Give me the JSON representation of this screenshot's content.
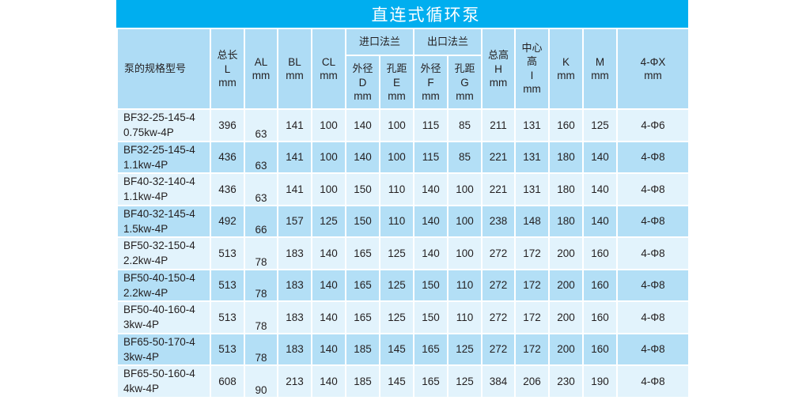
{
  "title": "直连式循环泵",
  "headers": {
    "model": "泵的规格型号",
    "L": [
      "总长",
      "L",
      "mm"
    ],
    "AL": [
      "AL",
      "mm"
    ],
    "BL": [
      "BL",
      "mm"
    ],
    "CL": [
      "CL",
      "mm"
    ],
    "inlet": "进口法兰",
    "outlet": "出口法兰",
    "D": [
      "外径",
      "D",
      "mm"
    ],
    "E": [
      "孔距",
      "E",
      "mm"
    ],
    "F": [
      "外径",
      "F",
      "mm"
    ],
    "G": [
      "孔距",
      "G",
      "mm"
    ],
    "H": [
      "总高",
      "H",
      "mm"
    ],
    "I": [
      "中心",
      "高",
      "I",
      "mm"
    ],
    "K": [
      "K",
      "mm"
    ],
    "M": [
      "M",
      "mm"
    ],
    "X": [
      "4-ΦX",
      "mm"
    ]
  },
  "rows": [
    {
      "model": [
        "BF32-25-145-4",
        "0.75kw-4P"
      ],
      "L": "396",
      "AL": "63",
      "BL": "141",
      "CL": "100",
      "D": "140",
      "E": "100",
      "F": "115",
      "G": "85",
      "H": "211",
      "I": "131",
      "K": "160",
      "M": "125",
      "X": "4-Φ6"
    },
    {
      "model": [
        "BF32-25-145-4",
        "1.1kw-4P"
      ],
      "L": "436",
      "AL": "63",
      "BL": "141",
      "CL": "100",
      "D": "140",
      "E": "100",
      "F": "115",
      "G": "85",
      "H": "221",
      "I": "131",
      "K": "180",
      "M": "140",
      "X": "4-Φ8"
    },
    {
      "model": [
        "BF40-32-140-4",
        "1.1kw-4P"
      ],
      "L": "436",
      "AL": "63",
      "BL": "141",
      "CL": "100",
      "D": "150",
      "E": "110",
      "F": "140",
      "G": "100",
      "H": "221",
      "I": "131",
      "K": "180",
      "M": "140",
      "X": "4-Φ8"
    },
    {
      "model": [
        "BF40-32-145-4",
        "1.5kw-4P"
      ],
      "L": "492",
      "AL": "66",
      "BL": "157",
      "CL": "125",
      "D": "150",
      "E": "110",
      "F": "140",
      "G": "100",
      "H": "238",
      "I": "148",
      "K": "180",
      "M": "140",
      "X": "4-Φ8"
    },
    {
      "model": [
        "BF50-32-150-4",
        "2.2kw-4P"
      ],
      "L": "513",
      "AL": "78",
      "BL": "183",
      "CL": "140",
      "D": "165",
      "E": "125",
      "F": "140",
      "G": "100",
      "H": "272",
      "I": "172",
      "K": "200",
      "M": "160",
      "X": "4-Φ8"
    },
    {
      "model": [
        "BF50-40-150-4",
        "2.2kw-4P"
      ],
      "L": "513",
      "AL": "78",
      "BL": "183",
      "CL": "140",
      "D": "165",
      "E": "125",
      "F": "150",
      "G": "110",
      "H": "272",
      "I": "172",
      "K": "200",
      "M": "160",
      "X": "4-Φ8"
    },
    {
      "model": [
        "BF50-40-160-4",
        "3kw-4P"
      ],
      "L": "513",
      "AL": "78",
      "BL": "183",
      "CL": "140",
      "D": "165",
      "E": "125",
      "F": "150",
      "G": "110",
      "H": "272",
      "I": "172",
      "K": "200",
      "M": "160",
      "X": "4-Φ8"
    },
    {
      "model": [
        "BF65-50-170-4",
        "3kw-4P"
      ],
      "L": "513",
      "AL": "78",
      "BL": "183",
      "CL": "140",
      "D": "185",
      "E": "145",
      "F": "165",
      "G": "125",
      "H": "272",
      "I": "172",
      "K": "200",
      "M": "160",
      "X": "4-Φ8"
    },
    {
      "model": [
        "BF65-50-160-4",
        "4kw-4P"
      ],
      "L": "608",
      "AL": "90",
      "BL": "213",
      "CL": "140",
      "D": "185",
      "E": "145",
      "F": "165",
      "G": "125",
      "H": "384",
      "I": "206",
      "K": "230",
      "M": "190",
      "X": "4-Φ8"
    }
  ]
}
